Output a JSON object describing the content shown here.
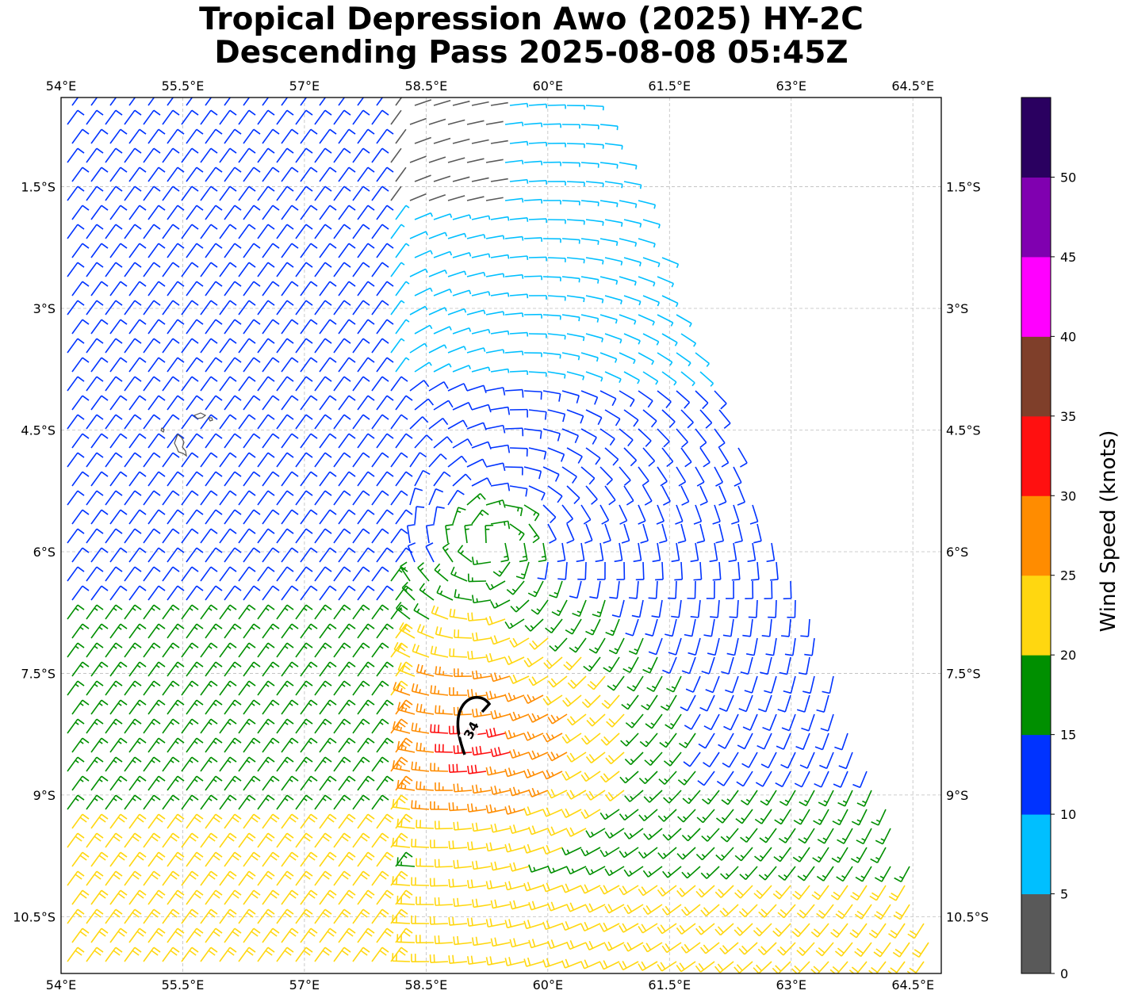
{
  "title": {
    "line1": "Tropical Depression Awo (2025) HY-2C",
    "line2": "Descending Pass 2025-08-08 05:45Z"
  },
  "map": {
    "lon_ticks": [
      "54°E",
      "55.5°E",
      "57°E",
      "58.5°E",
      "60°E",
      "61.5°E",
      "63°E",
      "64.5°E"
    ],
    "lat_ticks": [
      "1.5°S",
      "3°S",
      "4.5°S",
      "6°S",
      "7.5°S",
      "9°S",
      "10.5°S"
    ],
    "lon_values": [
      54,
      55.5,
      57,
      58.5,
      60,
      61.5,
      63,
      64.5
    ],
    "lat_values": [
      -1.5,
      -3,
      -4.5,
      -6,
      -7.5,
      -9,
      -10.5
    ],
    "extent": {
      "lon_min": 54.0,
      "lon_max": 64.85,
      "lat_min": -11.2,
      "lat_max": -0.4
    },
    "contour_label": "34",
    "center": {
      "lon": 59.3,
      "lat": -5.9
    }
  },
  "colorbar": {
    "label": "Wind Speed (knots)",
    "ticks": [
      "0",
      "5",
      "10",
      "15",
      "20",
      "25",
      "30",
      "35",
      "40",
      "45",
      "50"
    ],
    "colors": [
      "#595959",
      "#00bfff",
      "#0033ff",
      "#008f00",
      "#ffd710",
      "#ff8c00",
      "#ff1010",
      "#7f3f2a",
      "#ff00ff",
      "#8000b0",
      "#2a0060"
    ]
  }
}
